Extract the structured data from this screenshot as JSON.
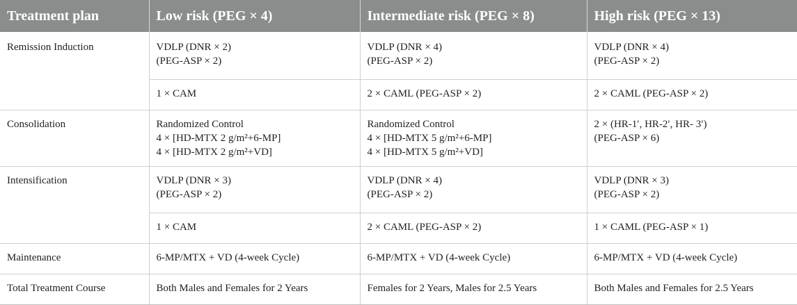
{
  "header": {
    "col1": "Treatment plan",
    "col2": "Low risk (PEG × 4)",
    "col3": "Intermediate risk (PEG × 8)",
    "col4": "High risk (PEG × 13)"
  },
  "rows": {
    "remission": {
      "stage": "Remission Induction",
      "a": {
        "low": "VDLP (DNR × 2)\n(PEG-ASP × 2)",
        "int": "VDLP (DNR × 4)\n(PEG-ASP × 2)",
        "high": "VDLP (DNR × 4)\n(PEG-ASP × 2)"
      },
      "b": {
        "low": "1 × CAM",
        "int": "2 × CAML (PEG-ASP × 2)",
        "high": "2 × CAML (PEG-ASP × 2)"
      }
    },
    "consolidation": {
      "stage": "Consolidation",
      "low": "Randomized Control\n4 × [HD-MTX 2 g/m²+6-MP]\n4 × [HD-MTX 2 g/m²+VD]",
      "int": "Randomized Control\n4 × [HD-MTX 5 g/m²+6-MP]\n4 × [HD-MTX 5 g/m²+VD]",
      "high": "2 × (HR-1′, HR-2′, HR- 3′)\n(PEG-ASP × 6)"
    },
    "intensification": {
      "stage": "Intensification",
      "a": {
        "low": "VDLP (DNR × 3)\n(PEG-ASP × 2)",
        "int": "VDLP (DNR × 4)\n(PEG-ASP × 2)",
        "high": "VDLP (DNR × 3)\n(PEG-ASP × 2)"
      },
      "b": {
        "low": "1 × CAM",
        "int": "2 × CAML (PEG-ASP × 2)",
        "high": "1 × CAML (PEG-ASP × 1)"
      }
    },
    "maintenance": {
      "stage": "Maintenance",
      "low": "6-MP/MTX + VD (4-week Cycle)",
      "int": "6-MP/MTX + VD (4-week Cycle)",
      "high": "6-MP/MTX + VD (4-week Cycle)"
    },
    "total": {
      "stage": "Total Treatment Course",
      "low": "Both Males and Females for 2 Years",
      "int": "Females for 2 Years, Males for 2.5 Years",
      "high": "Both Males and Females for 2.5 Years"
    }
  }
}
